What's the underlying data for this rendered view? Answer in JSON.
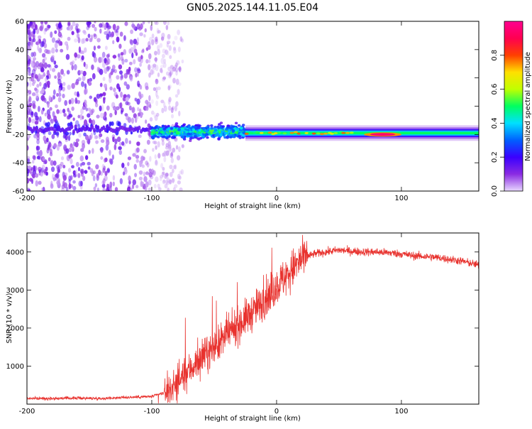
{
  "figure_title": "GN05.2025.144.11.05.E04",
  "chart_data": [
    {
      "type": "heatmap",
      "title": "GN05.2025.144.11.05.E04",
      "xlabel": "Height of straight line (km)",
      "ylabel": "Frequency (Hz)",
      "xlim": [
        -200,
        162
      ],
      "ylim": [
        -60,
        60
      ],
      "xticks": [
        -200,
        -100,
        0,
        100
      ],
      "yticks": [
        -60,
        -40,
        -20,
        0,
        20,
        40,
        60
      ],
      "colorbar": {
        "label": "Normalized spectral amplitude",
        "range": [
          0,
          1
        ],
        "ticks": [
          0.0,
          0.2,
          0.4,
          0.6,
          0.8
        ],
        "colormap": [
          "#e8d8ff",
          "#8a2be2",
          "#3a00ff",
          "#0060ff",
          "#00e0ff",
          "#00ff60",
          "#c0ff00",
          "#ffe000",
          "#ff4000",
          "#ff0050",
          "#ff0090"
        ]
      },
      "bands": [
        {
          "x": [
            -200,
            -75
          ],
          "freq_center": -16,
          "freq_halfwidth": 4,
          "amplitude": 0.15,
          "note_visible": "noise scatter across all frequencies"
        },
        {
          "x": [
            -100,
            -25
          ],
          "freq_center": -18,
          "freq_halfwidth": 7,
          "amplitude": 0.45
        },
        {
          "x": [
            -25,
            162
          ],
          "freq_center": -19,
          "freq_halfwidth": 2.5,
          "amplitude": 0.5
        },
        {
          "x": [
            70,
            100
          ],
          "freq_center": -20,
          "freq_halfwidth": 1.5,
          "amplitude": 0.95
        }
      ]
    },
    {
      "type": "line",
      "title": "",
      "xlabel": "Height of straight line (km)",
      "ylabel": "SNR (10 * v/v)",
      "xlim": [
        -200,
        162
      ],
      "ylim": [
        0,
        4500
      ],
      "xticks": [
        -200,
        -100,
        0,
        100
      ],
      "yticks": [
        1000,
        2000,
        3000,
        4000
      ],
      "series": [
        {
          "color": "#e8322e",
          "x": [
            -200,
            -180,
            -160,
            -140,
            -120,
            -100,
            -90,
            -80,
            -70,
            -60,
            -50,
            -40,
            -30,
            -20,
            -10,
            0,
            10,
            20,
            30,
            40,
            50,
            60,
            70,
            80,
            90,
            100,
            110,
            120,
            130,
            140,
            150,
            162
          ],
          "y": [
            150,
            150,
            160,
            150,
            180,
            200,
            300,
            550,
            900,
            1200,
            1500,
            1800,
            2100,
            2400,
            2750,
            3100,
            3450,
            3800,
            3950,
            4000,
            4050,
            4020,
            4000,
            4000,
            3980,
            3950,
            3900,
            3880,
            3850,
            3800,
            3750,
            3650
          ]
        }
      ]
    }
  ]
}
